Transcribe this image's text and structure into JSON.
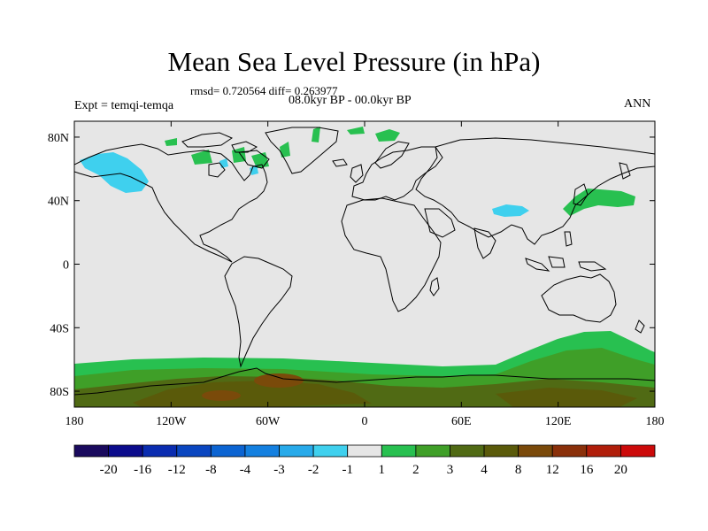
{
  "title": "Mean Sea Level Pressure (in hPa)",
  "stats": "rmsd= 0.720564 diff= 0.263977",
  "experiment": "Expt = temqi-temqa",
  "period": "08.0kyr BP - 00.0kyr BP",
  "season": "ANN",
  "map": {
    "projection": "cylindrical equidistant",
    "lon_range": [
      -180,
      180
    ],
    "lat_range": [
      -90,
      90
    ],
    "x_ticks": [
      {
        "lon": -180,
        "label": "180"
      },
      {
        "lon": -120,
        "label": "120W"
      },
      {
        "lon": -60,
        "label": "60W"
      },
      {
        "lon": 0,
        "label": "0"
      },
      {
        "lon": 60,
        "label": "60E"
      },
      {
        "lon": 120,
        "label": "120E"
      },
      {
        "lon": 180,
        "label": "180"
      }
    ],
    "y_ticks": [
      {
        "lat": 80,
        "label": "80N"
      },
      {
        "lat": 40,
        "label": "40N"
      },
      {
        "lat": 0,
        "label": "0"
      },
      {
        "lat": -40,
        "label": "40S"
      },
      {
        "lat": -80,
        "label": "80S"
      }
    ],
    "background_color": "#e6e6e6"
  },
  "colorbar": {
    "colors": [
      "#1a0a5e",
      "#0c0c8c",
      "#0a2cb0",
      "#0a46c0",
      "#0c64d2",
      "#1480e0",
      "#28aaea",
      "#3fd0ee",
      "#e6e6e6",
      "#28c050",
      "#3f9f28",
      "#506a14",
      "#5a5a0a",
      "#7a4a0a",
      "#8a300a",
      "#b01e0a",
      "#cc0a0a"
    ],
    "labels": [
      "-20",
      "-16",
      "-12",
      "-8",
      "-4",
      "-3",
      "-2",
      "-1",
      "1",
      "2",
      "3",
      "4",
      "8",
      "12",
      "16",
      "20"
    ]
  },
  "features": [
    {
      "name": "alaska-negative-anomaly",
      "lon": -152,
      "lat": 55,
      "value": "-1 to -2"
    },
    {
      "name": "tibet-negative-anomaly",
      "lon": 92,
      "lat": 37,
      "value": "-1 to -2"
    },
    {
      "name": "japan-positive-anomaly",
      "lon": 140,
      "lat": 40,
      "value": "1 to 2"
    },
    {
      "name": "southern-ocean-positive-band",
      "lon": 0,
      "lat": -65,
      "value": "1 to 2"
    },
    {
      "name": "antarctic-positive-anomaly",
      "lon": 0,
      "lat": -82,
      "value": "3 to 12"
    }
  ]
}
